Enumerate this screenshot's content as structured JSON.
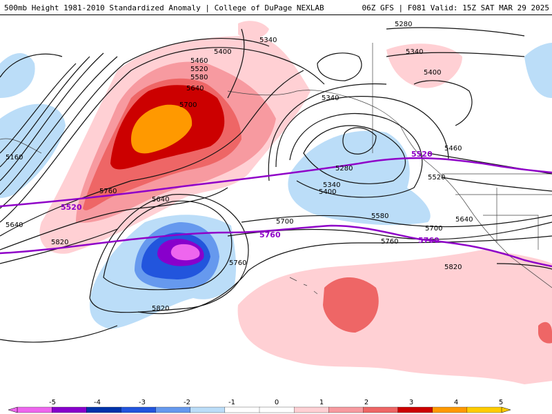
{
  "header": {
    "left_title": "500mb Height 1981-2010 Standardized Anomaly | College of DuPage NEXLAB",
    "right_title": "06Z GFS | F081 Valid: 15Z SAT MAR 29 2025"
  },
  "contour_labels": {
    "c5280a": "5280",
    "c5340a": "5340",
    "c5400a": "5400",
    "c5340b": "5340",
    "c5400b": "5400",
    "c5460": "5460",
    "c5520": "5520",
    "c5580": "5580",
    "c5640": "5640",
    "c5700": "5700",
    "c5340c": "5340",
    "c5280b": "5280",
    "c5340d": "5340",
    "c5400c": "5400",
    "c5580b": "5580",
    "c5160": "5160",
    "c5640b": "5640",
    "c5760": "5760",
    "c5640c": "5640",
    "c5820": "5820",
    "c5700b": "5700",
    "c5760b": "5760",
    "c5820b": "5820",
    "c5760c": "5760",
    "c5700c": "5700",
    "c5640d": "5640",
    "c5460b": "5460",
    "c5520b": "5520",
    "c5820c": "5820"
  },
  "highlight_labels": {
    "p5520a": "5520",
    "p5520b": "5520",
    "p5760a": "5760",
    "p5760b": "5760"
  },
  "colorbar": {
    "ticks": [
      "-5",
      "-4",
      "-3",
      "-2",
      "-1",
      "0",
      "1",
      "2",
      "3",
      "4",
      "5"
    ],
    "colors": [
      "#ee66ee",
      "#8800cc",
      "#0033aa",
      "#2255dd",
      "#6699ee",
      "#bbddf8",
      "#ffffff",
      "#ffffff",
      "#ffd0d4",
      "#f79aa0",
      "#ee6666",
      "#cc0000",
      "#ff9900",
      "#ffcc00"
    ]
  }
}
